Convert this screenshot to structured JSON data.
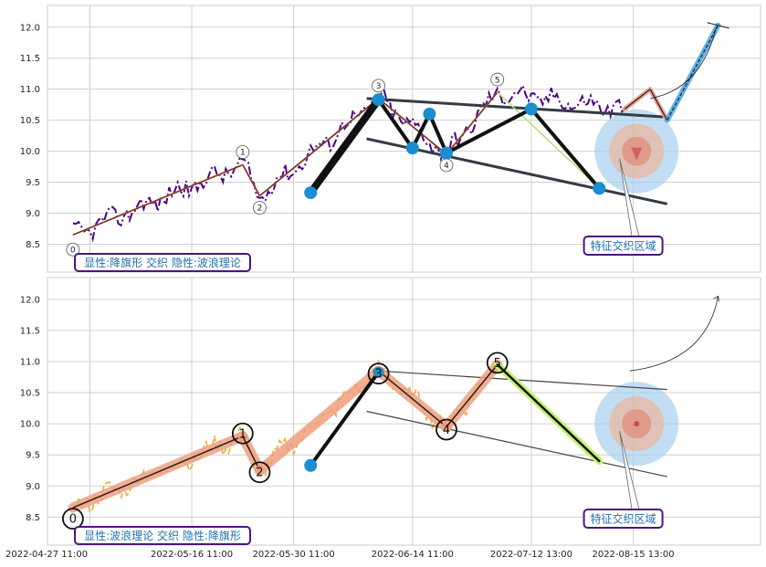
{
  "chart_data": [
    {
      "type": "line",
      "panel": "top",
      "x_ticks": [],
      "yticks": [
        8.5,
        9.0,
        9.5,
        10.0,
        10.5,
        11.0,
        11.5,
        12.0
      ],
      "ylim": [
        8.05,
        12.35
      ],
      "grid": true,
      "price_color": "#4b0082",
      "wave_points": [
        {
          "label": "0",
          "x": 0.5,
          "y": 8.65
        },
        {
          "label": "1",
          "x": 10.5,
          "y": 9.78
        },
        {
          "label": "2",
          "x": 11.5,
          "y": 9.28
        },
        {
          "label": "3",
          "x": 18.5,
          "y": 10.85
        },
        {
          "label": "4",
          "x": 22.5,
          "y": 9.95
        },
        {
          "label": "5",
          "x": 25.5,
          "y": 10.95
        }
      ],
      "flag_points": [
        {
          "x": 14.5,
          "y": 9.33
        },
        {
          "x": 18.5,
          "y": 10.83
        },
        {
          "x": 20.5,
          "y": 10.05
        },
        {
          "x": 21.5,
          "y": 10.6
        },
        {
          "x": 22.5,
          "y": 9.97
        },
        {
          "x": 27.5,
          "y": 10.68
        },
        {
          "x": 31.5,
          "y": 9.4
        }
      ],
      "channel_upper": [
        {
          "x": 17.8,
          "y": 10.85
        },
        {
          "x": 35.5,
          "y": 10.55
        }
      ],
      "channel_lower": [
        {
          "x": 17.8,
          "y": 10.2
        },
        {
          "x": 35.5,
          "y": 9.15
        }
      ],
      "projection": [
        {
          "x": 33,
          "y": 10.68
        },
        {
          "x": 34.5,
          "y": 11.0
        },
        {
          "x": 35.5,
          "y": 10.5
        },
        {
          "x": 38.5,
          "y": 12.03
        }
      ],
      "label": "显性:降旗形 交织 隐性:波浪理论",
      "callout": "特征交织区域",
      "zone_center": {
        "x": 33.7,
        "y": 10.0
      }
    },
    {
      "type": "line",
      "panel": "bottom",
      "x_ticks": [
        "2022-04-27 11:00",
        "2022-05-16 11:00",
        "2022-05-30 11:00",
        "2022-06-14 11:00",
        "2022-07-12 13:00",
        "2022-08-15 13:00"
      ],
      "yticks": [
        8.5,
        9.0,
        9.5,
        10.0,
        10.5,
        11.0,
        11.5,
        12.0
      ],
      "ylim": [
        8.05,
        12.35
      ],
      "grid": true,
      "price_color": "#e8b040",
      "wave_points": [
        {
          "label": "0",
          "x": 0.5,
          "y": 8.65
        },
        {
          "label": "1",
          "x": 10.5,
          "y": 9.8
        },
        {
          "label": "2",
          "x": 11.5,
          "y": 9.25
        },
        {
          "label": "3",
          "x": 18.5,
          "y": 10.85
        },
        {
          "label": "4",
          "x": 22.5,
          "y": 9.95
        },
        {
          "label": "5",
          "x": 25.5,
          "y": 10.95
        }
      ],
      "flag_points": [
        {
          "x": 14.5,
          "y": 9.33
        },
        {
          "x": 18.5,
          "y": 10.83
        },
        {
          "x": 25.5,
          "y": 10.95
        },
        {
          "x": 31.5,
          "y": 9.4
        }
      ],
      "channel_upper": [
        {
          "x": 18.5,
          "y": 10.85
        },
        {
          "x": 35.5,
          "y": 10.55
        }
      ],
      "channel_lower": [
        {
          "x": 17.8,
          "y": 10.2
        },
        {
          "x": 35.5,
          "y": 9.15
        }
      ],
      "label": "显性:波浪理论 交织 隐性:降旗形",
      "callout": "特征交织区域",
      "zone_center": {
        "x": 33.7,
        "y": 10.0
      }
    }
  ]
}
